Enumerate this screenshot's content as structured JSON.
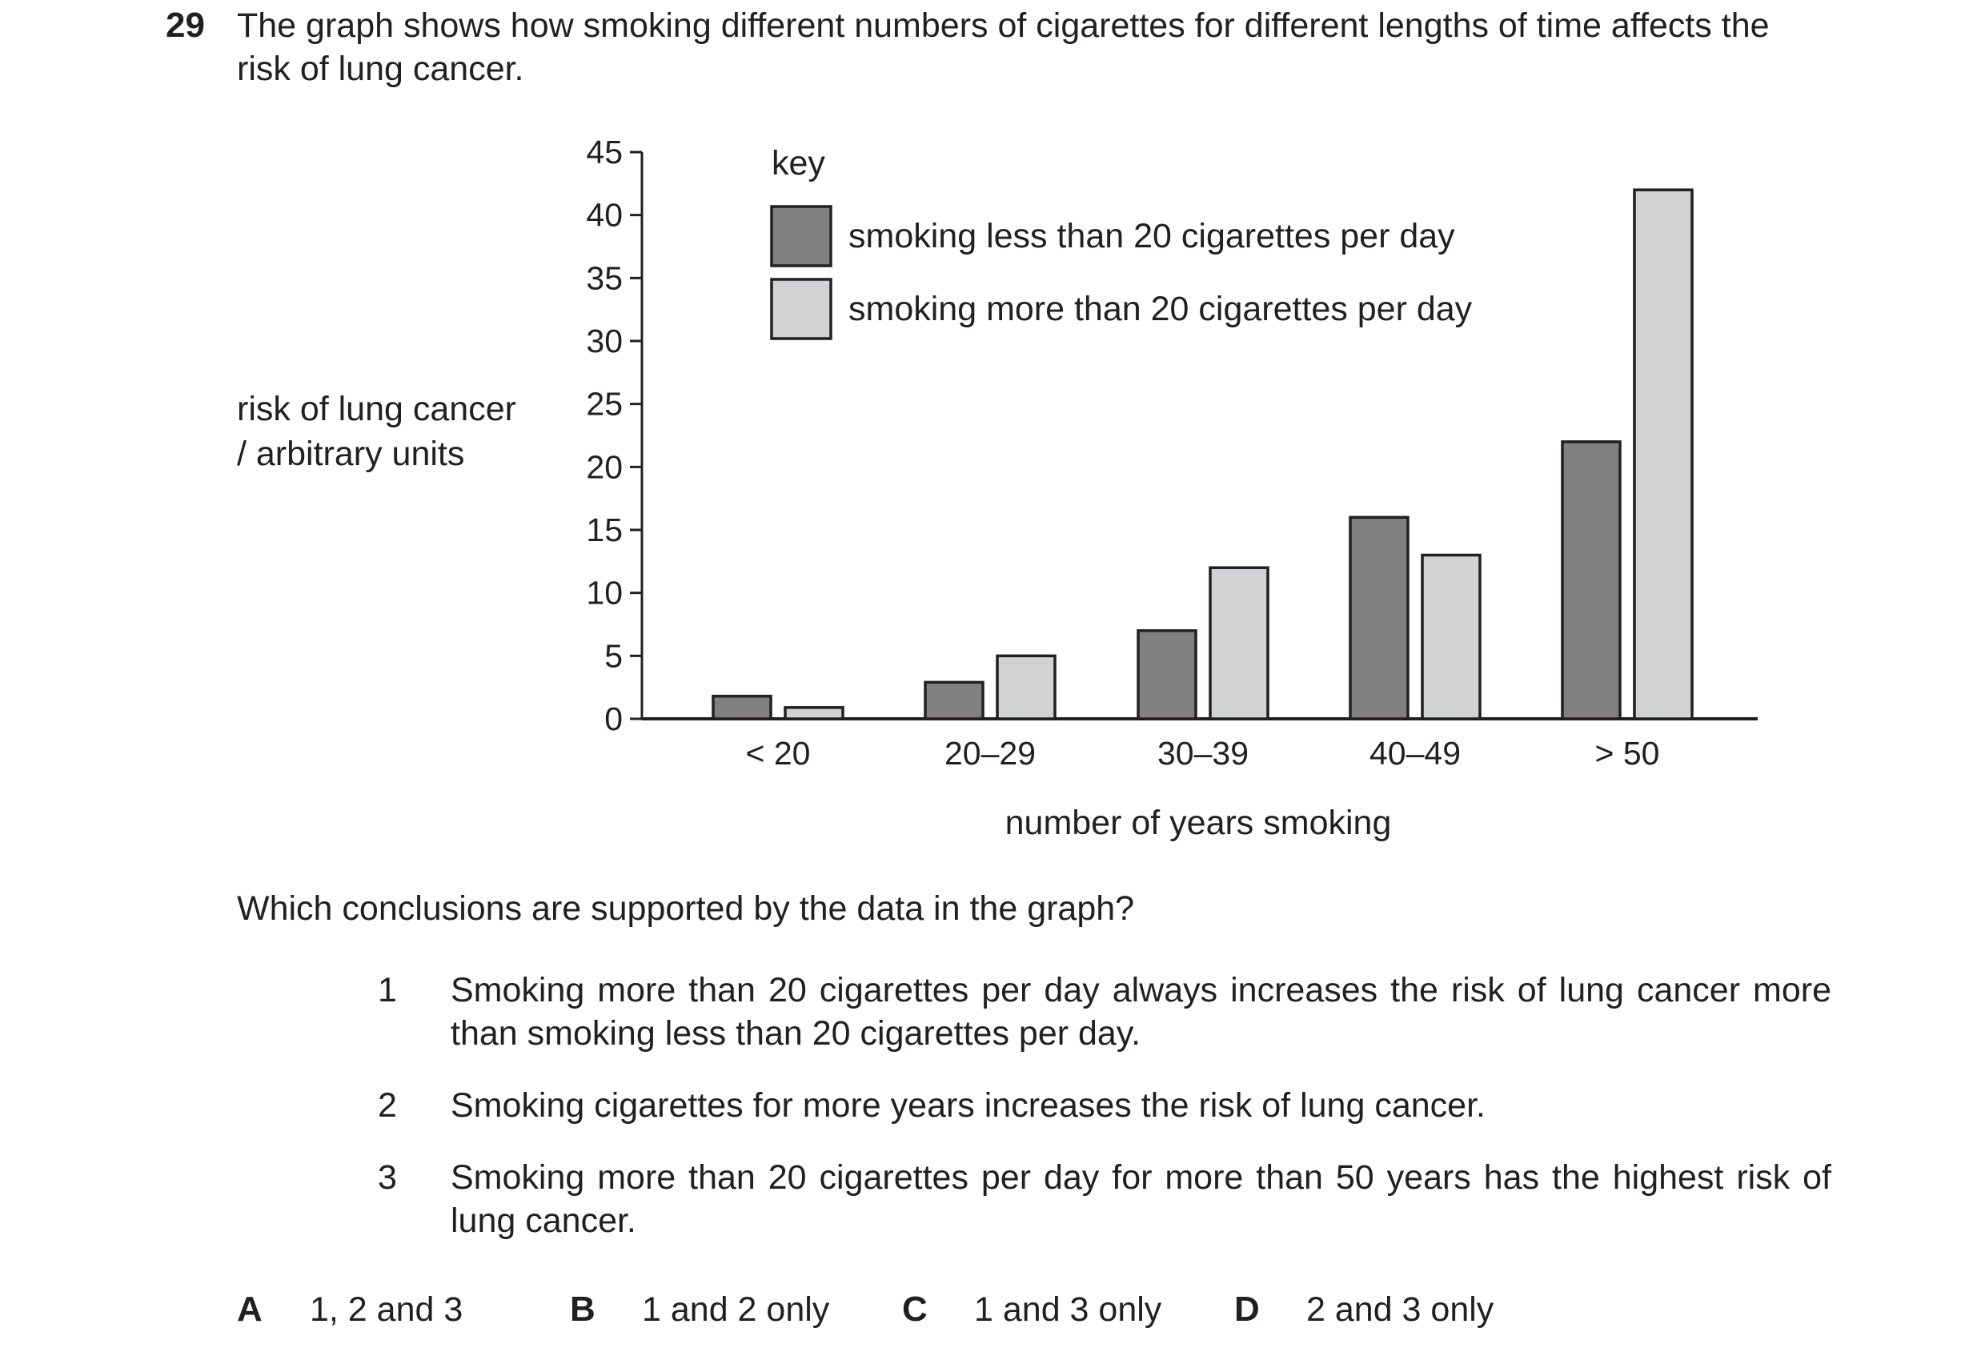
{
  "question": {
    "number": "29",
    "text": "The graph shows how smoking different numbers of cigarettes for different lengths of time affects the risk of lung cancer.",
    "prompt": "Which conclusions are supported by the data in the graph?",
    "statements": [
      {
        "num": "1",
        "text": "Smoking more than 20 cigarettes per day always increases the risk of lung cancer more than smoking less than 20 cigarettes per day."
      },
      {
        "num": "2",
        "text": "Smoking cigarettes for more years increases the risk of lung cancer."
      },
      {
        "num": "3",
        "text": "Smoking more than 20 cigarettes per day for more than 50 years has the highest risk of lung cancer."
      }
    ],
    "options": [
      {
        "letter": "A",
        "text": "1, 2 and 3"
      },
      {
        "letter": "B",
        "text": "1 and 2 only"
      },
      {
        "letter": "C",
        "text": "1 and 3 only"
      },
      {
        "letter": "D",
        "text": "2 and 3 only"
      }
    ]
  },
  "chart_data": {
    "type": "bar",
    "title": "",
    "ylabel_lines": [
      "risk of lung cancer",
      "/ arbitrary units"
    ],
    "xlabel": "number of years smoking",
    "legend_title": "key",
    "legend_position": "top-left",
    "grid": false,
    "ylim": [
      0,
      45
    ],
    "yticks": [
      0,
      5,
      10,
      15,
      20,
      25,
      30,
      35,
      40,
      45
    ],
    "categories": [
      "< 20",
      "20–29",
      "30–39",
      "40–49",
      "> 50"
    ],
    "series": [
      {
        "name": "smoking less than 20 cigarettes per day",
        "color": "#808080",
        "values": [
          1.8,
          2.9,
          7,
          16,
          22
        ]
      },
      {
        "name": "smoking more than 20 cigarettes per day",
        "color": "#d1d2d4",
        "values": [
          0.9,
          5,
          12,
          13,
          42
        ]
      }
    ]
  }
}
